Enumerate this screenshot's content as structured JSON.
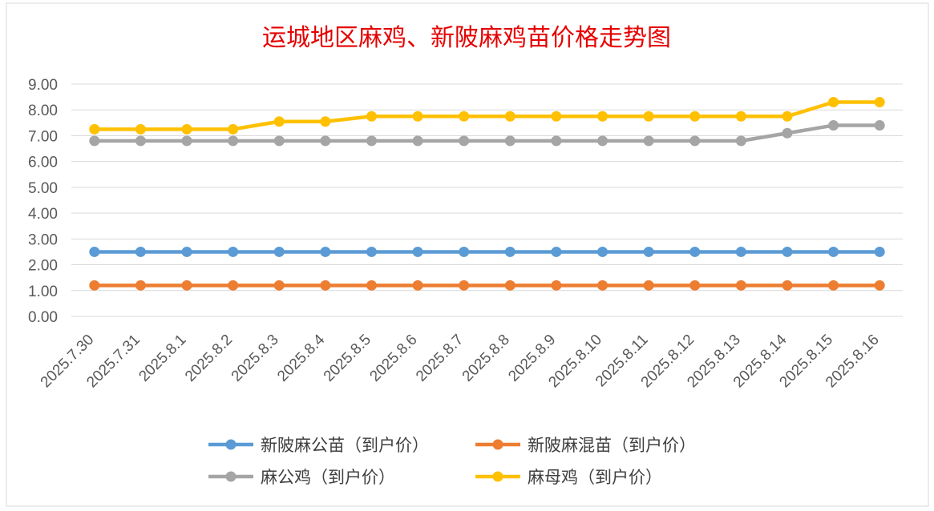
{
  "chart_data": {
    "type": "line",
    "title": "运城地区麻鸡、新陂麻鸡苗价格走势图",
    "xlabel": "",
    "ylabel": "",
    "ylim": [
      0,
      9
    ],
    "yticks": [
      "0.00",
      "1.00",
      "2.00",
      "3.00",
      "4.00",
      "5.00",
      "6.00",
      "7.00",
      "8.00",
      "9.00"
    ],
    "grid": true,
    "legend_position": "bottom",
    "categories": [
      "2025.7.30",
      "2025.7.31",
      "2025.8.1",
      "2025.8.2",
      "2025.8.3",
      "2025.8.4",
      "2025.8.5",
      "2025.8.6",
      "2025.8.7",
      "2025.8.8",
      "2025.8.9",
      "2025.8.10",
      "2025.8.11",
      "2025.8.12",
      "2025.8.13",
      "2025.8.14",
      "2025.8.15",
      "2025.8.16"
    ],
    "series": [
      {
        "name": "新陂麻公苗（到户价）",
        "color": "#5b9bd5",
        "values": [
          2.5,
          2.5,
          2.5,
          2.5,
          2.5,
          2.5,
          2.5,
          2.5,
          2.5,
          2.5,
          2.5,
          2.5,
          2.5,
          2.5,
          2.5,
          2.5,
          2.5,
          2.5
        ]
      },
      {
        "name": "新陂麻混苗（到户价）",
        "color": "#ed7d31",
        "values": [
          1.2,
          1.2,
          1.2,
          1.2,
          1.2,
          1.2,
          1.2,
          1.2,
          1.2,
          1.2,
          1.2,
          1.2,
          1.2,
          1.2,
          1.2,
          1.2,
          1.2,
          1.2
        ]
      },
      {
        "name": "麻公鸡（到户价）",
        "color": "#a5a5a5",
        "values": [
          6.8,
          6.8,
          6.8,
          6.8,
          6.8,
          6.8,
          6.8,
          6.8,
          6.8,
          6.8,
          6.8,
          6.8,
          6.8,
          6.8,
          6.8,
          7.1,
          7.4,
          7.4
        ]
      },
      {
        "name": "麻母鸡（到户价）",
        "color": "#ffc000",
        "values": [
          7.25,
          7.25,
          7.25,
          7.25,
          7.55,
          7.55,
          7.75,
          7.75,
          7.75,
          7.75,
          7.75,
          7.75,
          7.75,
          7.75,
          7.75,
          7.75,
          8.3,
          8.3
        ]
      }
    ]
  }
}
